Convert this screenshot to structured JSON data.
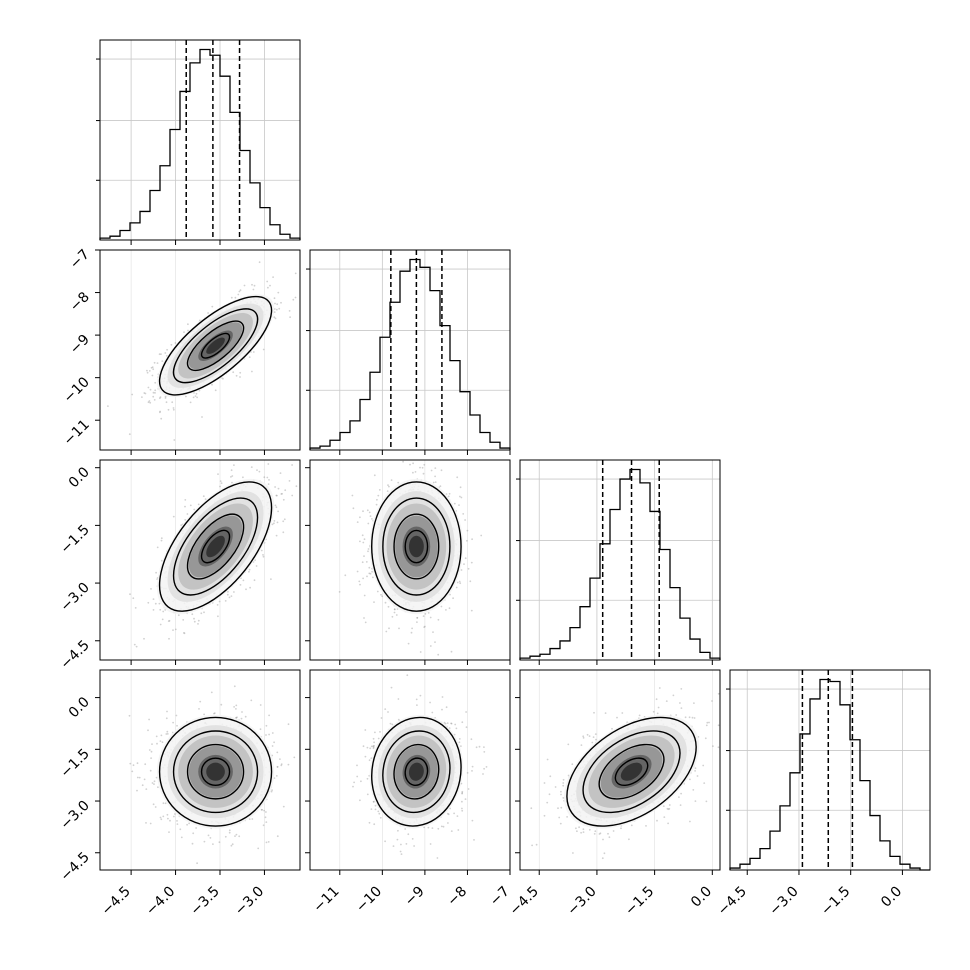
{
  "chart_data": {
    "type": "corner",
    "title": "",
    "parameters": [
      {
        "range": [
          -4.85,
          -2.6
        ],
        "ticks": [
          -4.5,
          -4.0,
          -3.5,
          -3.0
        ],
        "tick_labels": [
          "−4.5",
          "−4.0",
          "−3.5",
          "−3.0"
        ],
        "quantiles": [
          -3.88,
          -3.58,
          -3.28
        ],
        "y_ticks": [
          -4.5,
          -4.0,
          -3.5,
          -3.0
        ]
      },
      {
        "range": [
          -11.7,
          -7.0
        ],
        "ticks": [
          -11,
          -10,
          -9,
          -8,
          -7
        ],
        "tick_labels": [
          "−11",
          "−10",
          "−9",
          "−8",
          "−7"
        ],
        "quantiles": [
          -9.8,
          -9.2,
          -8.6
        ],
        "y_ticks": [
          -7,
          -8,
          -9,
          -10,
          -11
        ]
      },
      {
        "range": [
          -5.0,
          0.2
        ],
        "ticks": [
          -4.5,
          -3.0,
          -1.5,
          0.0
        ],
        "tick_labels": [
          "−4.5",
          "−3.0",
          "−1.5",
          "0.0"
        ],
        "quantiles": [
          -2.85,
          -2.1,
          -1.38
        ],
        "y_ticks": [
          0.0,
          -1.5,
          -3.0,
          -4.5
        ]
      },
      {
        "range": [
          -5.0,
          0.8
        ],
        "ticks": [
          -4.5,
          -3.0,
          -1.5,
          0.0
        ],
        "tick_labels": [
          "−4.5",
          "−3.0",
          "−1.5",
          "0.0"
        ],
        "quantiles": [
          -2.9,
          -2.15,
          -1.45
        ],
        "y_ticks": [
          0.0,
          -1.5,
          -3.0,
          -4.5
        ]
      }
    ],
    "histograms": [
      [
        0.01,
        0.02,
        0.05,
        0.09,
        0.15,
        0.26,
        0.39,
        0.58,
        0.78,
        0.93,
        1.0,
        0.97,
        0.86,
        0.67,
        0.47,
        0.3,
        0.17,
        0.08,
        0.03,
        0.01
      ],
      [
        0.01,
        0.02,
        0.05,
        0.09,
        0.15,
        0.26,
        0.4,
        0.58,
        0.76,
        0.92,
        0.98,
        0.94,
        0.82,
        0.64,
        0.46,
        0.3,
        0.18,
        0.09,
        0.04,
        0.01
      ],
      [
        0.01,
        0.02,
        0.03,
        0.06,
        0.1,
        0.17,
        0.28,
        0.43,
        0.61,
        0.79,
        0.95,
        1.0,
        0.93,
        0.78,
        0.58,
        0.38,
        0.22,
        0.11,
        0.04,
        0.01
      ],
      [
        0.01,
        0.03,
        0.06,
        0.11,
        0.2,
        0.33,
        0.5,
        0.7,
        0.88,
        0.98,
        0.97,
        0.85,
        0.67,
        0.46,
        0.28,
        0.15,
        0.07,
        0.03,
        0.01,
        0.0
      ]
    ],
    "pairs": [
      {
        "row": 1,
        "col": 0,
        "center": [
          -3.55,
          -9.25
        ],
        "sd": [
          0.3,
          0.55
        ],
        "rho": 0.72
      },
      {
        "row": 2,
        "col": 0,
        "center": [
          -3.55,
          -2.05
        ],
        "sd": [
          0.3,
          0.8
        ],
        "rho": 0.6
      },
      {
        "row": 2,
        "col": 1,
        "center": [
          -9.2,
          -2.05
        ],
        "sd": [
          0.5,
          0.8
        ],
        "rho": 0.0
      },
      {
        "row": 3,
        "col": 0,
        "center": [
          -3.55,
          -2.15
        ],
        "sd": [
          0.3,
          0.75
        ],
        "rho": 0.0
      },
      {
        "row": 3,
        "col": 1,
        "center": [
          -9.2,
          -2.15
        ],
        "sd": [
          0.5,
          0.75
        ],
        "rho": 0.08
      },
      {
        "row": 3,
        "col": 2,
        "center": [
          -2.1,
          -2.15
        ],
        "sd": [
          0.8,
          0.75
        ],
        "rho": 0.45
      }
    ],
    "contour_levels_sigma": [
      0.5,
      1.0,
      1.5,
      2.0
    ],
    "grid": true,
    "legend": "none"
  }
}
